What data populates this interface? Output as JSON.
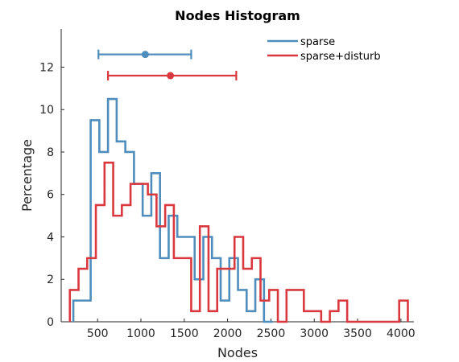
{
  "chart_data": {
    "type": "histogram",
    "title": "Nodes Histogram",
    "xlabel": "Nodes",
    "ylabel": "Percentage",
    "xlim": [
      80,
      4150
    ],
    "ylim": [
      0,
      13.8
    ],
    "xticks": [
      500,
      1000,
      1500,
      2000,
      2500,
      3000,
      3500,
      4000
    ],
    "yticks": [
      0,
      2,
      4,
      6,
      8,
      10,
      12
    ],
    "legend_position": "top-right",
    "series": [
      {
        "name": "sparse",
        "color": "#4f8dbd",
        "step_x": [
          220,
          320,
          420,
          520,
          620,
          720,
          820,
          920,
          1020,
          1120,
          1220,
          1320,
          1420,
          1520,
          1620,
          1720,
          1820,
          1920,
          2020,
          2120,
          2220,
          2320,
          2420,
          2520
        ],
        "step_y": [
          1,
          1,
          9.5,
          8,
          10.5,
          8.5,
          8,
          6.5,
          5,
          7,
          3,
          5,
          4,
          4,
          2,
          4,
          3,
          1,
          3,
          1.5,
          0.5,
          2,
          0,
          0
        ],
        "mean": 1050,
        "err": [
          510,
          1580
        ],
        "err_y": 12.6
      },
      {
        "name": "sparse+disturb",
        "color": "#d9393e",
        "step_x": [
          180,
          280,
          380,
          480,
          580,
          680,
          780,
          880,
          980,
          1080,
          1180,
          1280,
          1380,
          1480,
          1580,
          1680,
          1780,
          1880,
          1980,
          2080,
          2180,
          2280,
          2380,
          2480,
          2580,
          2680,
          2780,
          2880,
          2980,
          3080,
          3180,
          3280,
          3380,
          3480,
          3580,
          3680,
          3780,
          3880,
          3980,
          4080
        ],
        "step_y": [
          1.5,
          2.5,
          3,
          5.5,
          7.5,
          5,
          5.5,
          6.5,
          6.5,
          6,
          4.5,
          5.5,
          3,
          3,
          0.5,
          4.5,
          0.5,
          2.5,
          2.5,
          4,
          2.5,
          3,
          1,
          1.5,
          0,
          1.5,
          1.5,
          0.5,
          0.5,
          0,
          0.5,
          1,
          0,
          0,
          0,
          0,
          0,
          0,
          1,
          0
        ],
        "mean": 1340,
        "err": [
          620,
          2100
        ],
        "err_y": 11.6
      }
    ]
  }
}
